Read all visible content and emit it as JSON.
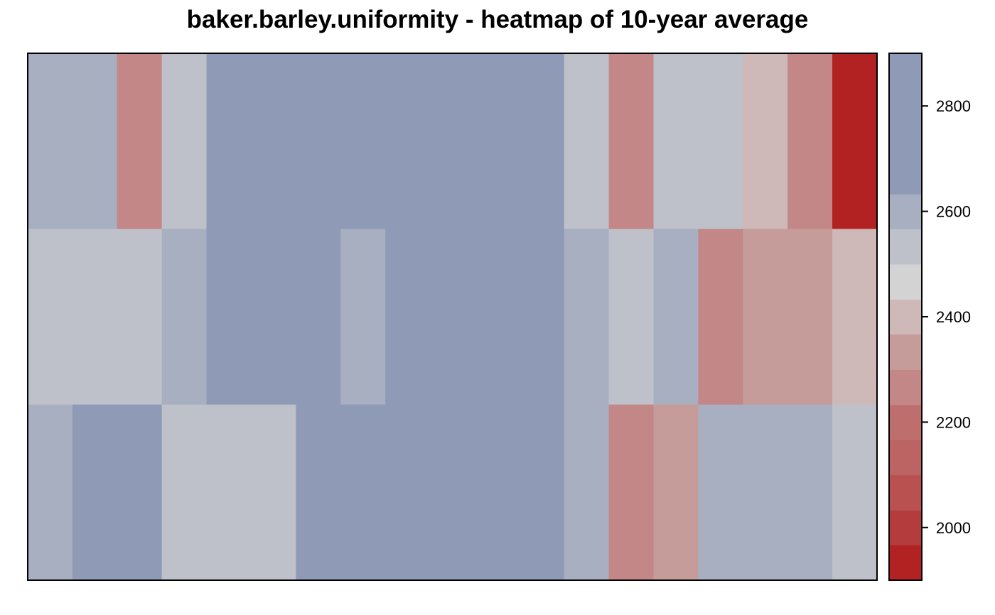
{
  "chart_data": {
    "type": "heatmap",
    "title": "baker.barley.uniformity - heatmap of 10-year average",
    "xlabel": "",
    "ylabel": "",
    "columns": 19,
    "rows": 3,
    "values": [
      [
        2620,
        2620,
        2250,
        2500,
        2650,
        2650,
        2750,
        2850,
        2650,
        2650,
        2750,
        2650,
        2500,
        2250,
        2500,
        2500,
        2420,
        2250,
        1950
      ],
      [
        2500,
        2500,
        2500,
        2620,
        2750,
        2750,
        2850,
        2620,
        2750,
        2750,
        2750,
        2650,
        2620,
        2500,
        2620,
        2250,
        2320,
        2320,
        2420
      ],
      [
        2620,
        2650,
        2650,
        2500,
        2500,
        2500,
        2650,
        2750,
        2750,
        2650,
        2650,
        2750,
        2620,
        2250,
        2320,
        2620,
        2620,
        2620,
        2500
      ]
    ],
    "color_scale": {
      "breaks": [
        1900,
        1967,
        2033,
        2100,
        2167,
        2233,
        2300,
        2367,
        2433,
        2500,
        2567,
        2633,
        2700,
        2767,
        2833,
        2900
      ],
      "colors": [
        "#b22222",
        "#b53c3c",
        "#b95151",
        "#bc6464",
        "#bf6e6e",
        "#c28786",
        "#c69c9b",
        "#ceb8b8",
        "#d3d3d3",
        "#bec1ca",
        "#a7afc0",
        "#8f9bb6",
        "#8f9bb6",
        "#8f9bb6",
        "#8f9bb6"
      ]
    },
    "colorbar": {
      "range": [
        1900,
        2900
      ],
      "ticks": [
        2000,
        2200,
        2400,
        2600,
        2800
      ]
    },
    "grid": false,
    "legend": "right"
  }
}
